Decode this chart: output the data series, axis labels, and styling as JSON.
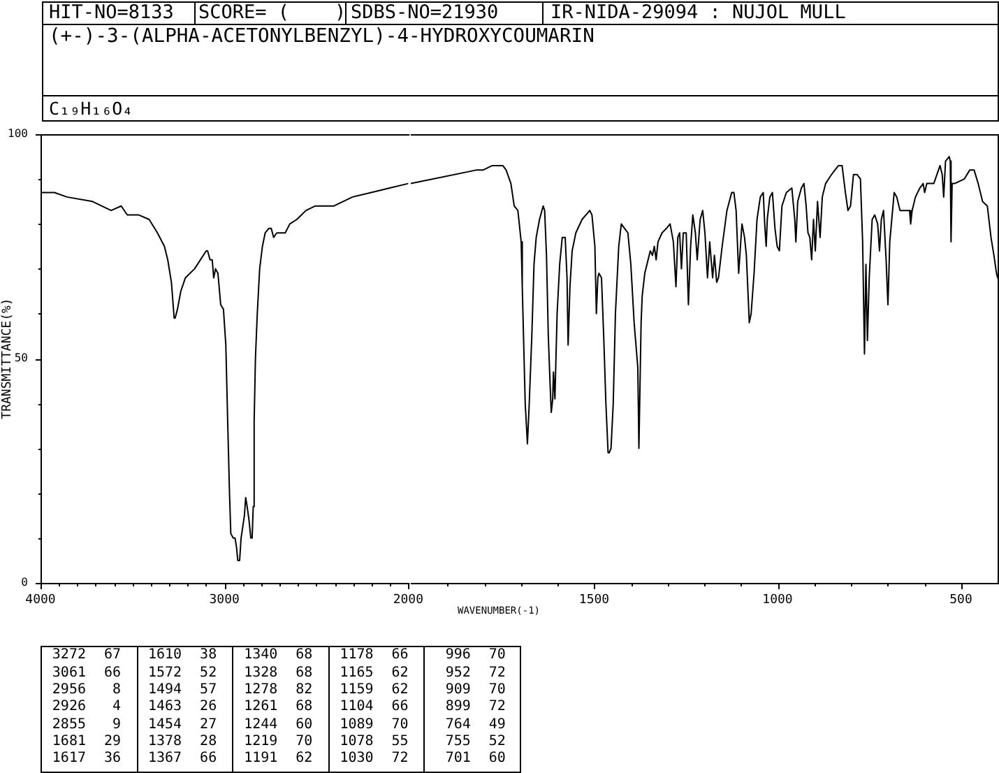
{
  "chart_data": [
    {
      "type": "line",
      "title": "(+-)-3-(ALPHA-ACETONYLBENZYL)-4-HYDROXYCOUMARIN",
      "subtitle": "C₁₉H₁₆O₄",
      "annotations": [
        "HIT-NO=8133",
        "SCORE= (    )",
        "SDBS-NO=21930",
        "IR-NIDA-29094 : NUJOL MULL"
      ],
      "ylabel": "TRANSMITTANCE(%)",
      "x": [
        4000,
        3924,
        3856,
        3717,
        3616,
        3561,
        3528,
        3465,
        3409,
        3364,
        3326,
        3308,
        3288,
        3273,
        3268,
        3255,
        3237,
        3212,
        3162,
        3099,
        3091,
        3078,
        3066,
        3058,
        3048,
        3035,
        3020,
        3005,
        2992,
        2982,
        2972,
        2965,
        2952,
        2942,
        2934,
        2927,
        2917,
        2909,
        2891,
        2884,
        2876,
        2866,
        2856,
        2849,
        2843,
        2838,
        2831,
        2821,
        2808,
        2793,
        2778,
        2758,
        2745,
        2732,
        2715,
        2669,
        2644,
        2606,
        2556,
        2505,
        2404,
        2303,
        2202,
        2101,
        2000
      ],
      "values": [
        87,
        87,
        86,
        85,
        83,
        84,
        82,
        82,
        81,
        78,
        75,
        72,
        67,
        59,
        59,
        61,
        65,
        68,
        70,
        74,
        74,
        72,
        72,
        68,
        70,
        69,
        62,
        61,
        53,
        36,
        20,
        11,
        10,
        10,
        8,
        5,
        5,
        10,
        15,
        19,
        17,
        14,
        10,
        10,
        17,
        36,
        50,
        60,
        70,
        75,
        78,
        79,
        79,
        77,
        78,
        78,
        80,
        81,
        83,
        84,
        84,
        86,
        87,
        88,
        89
      ],
      "color": "#000000",
      "xlim": [
        4000,
        2000
      ],
      "xticks": [
        4000,
        {
          "value": 3900,
          "label": null
        },
        {
          "value": 3800,
          "label": null
        },
        {
          "value": 3700,
          "label": null
        },
        {
          "value": 3600,
          "label": null
        },
        {
          "value": 3500,
          "label": null
        },
        {
          "value": 3400,
          "label": null
        },
        {
          "value": 3300,
          "label": null
        },
        {
          "value": 3200,
          "label": null
        },
        {
          "value": 3100,
          "label": null
        },
        3000,
        {
          "value": 2900,
          "label": null
        },
        {
          "value": 2800,
          "label": null
        },
        {
          "value": 2700,
          "label": null
        },
        {
          "value": 2600,
          "label": null
        },
        {
          "value": 2500,
          "label": null
        },
        {
          "value": 2400,
          "label": null
        },
        {
          "value": 2300,
          "label": null
        },
        {
          "value": 2200,
          "label": null
        },
        {
          "value": 2100,
          "label": null
        },
        2000
      ],
      "ylim": [
        0,
        100
      ],
      "yticks": [
        0,
        {
          "value": 10,
          "label": null
        },
        {
          "value": 20,
          "label": null
        },
        {
          "value": 30,
          "label": null
        },
        {
          "value": 40,
          "label": null
        },
        50,
        {
          "value": 60,
          "label": null
        },
        {
          "value": 70,
          "label": null
        },
        {
          "value": 80,
          "label": null
        },
        {
          "value": 90,
          "label": null
        },
        100
      ],
      "grid": false,
      "legend": false,
      "marker": "none",
      "line_style": "solid"
    },
    {
      "type": "line",
      "xlabel": "WAVENUMBER(-1)",
      "x": [
        2000,
        1822,
        1803,
        1778,
        1749,
        1740,
        1727,
        1718,
        1708,
        1699,
        1696,
        1688,
        1682,
        1677,
        1670,
        1664,
        1658,
        1649,
        1639,
        1635,
        1630,
        1625,
        1620,
        1617,
        1613,
        1611,
        1607,
        1601,
        1594,
        1587,
        1579,
        1574,
        1571,
        1566,
        1560,
        1550,
        1533,
        1512,
        1506,
        1498,
        1494,
        1490,
        1487,
        1480,
        1474,
        1468,
        1462,
        1459,
        1454,
        1448,
        1442,
        1433,
        1426,
        1417,
        1408,
        1400,
        1391,
        1381,
        1378,
        1372,
        1369,
        1362,
        1353,
        1347,
        1341,
        1336,
        1331,
        1326,
        1315,
        1303,
        1293,
        1284,
        1277,
        1272,
        1267,
        1262,
        1257,
        1249,
        1243,
        1237,
        1231,
        1224,
        1219,
        1211,
        1204,
        1198,
        1191,
        1185,
        1177,
        1172,
        1166,
        1161,
        1151,
        1138,
        1125,
        1119,
        1113,
        1106,
        1097,
        1090,
        1085,
        1077,
        1072,
        1064,
        1056,
        1047,
        1039,
        1035,
        1031,
        1028,
        1021,
        1014,
        1007,
        1001,
        995,
        988,
        976,
        961,
        953,
        950,
        945,
        935,
        928,
        922,
        917,
        912,
        907,
        902,
        897,
        891,
        884,
        878,
        869,
        853,
        834,
        824,
        815,
        808,
        801,
        793,
        783,
        774,
        768,
        763,
        759,
        755,
        750,
        742,
        735,
        727,
        722,
        717,
        711,
        704,
        699,
        694,
        682,
        675,
        666,
        650,
        640,
        637,
        633,
        624,
        612,
        603,
        599,
        593,
        574,
        557,
        551,
        547,
        542,
        532,
        529,
        527,
        524,
        517,
        491,
        476,
        464,
        453,
        441,
        428,
        418,
        410,
        403,
        400
      ],
      "values": [
        89,
        92,
        92,
        93,
        93,
        92,
        89,
        84,
        83,
        76,
        66,
        40,
        31,
        40,
        55,
        71,
        77,
        81,
        84,
        83,
        73,
        55,
        44,
        38,
        41,
        47,
        41,
        60,
        71,
        77,
        77,
        68,
        53,
        66,
        74,
        78,
        81,
        83,
        82,
        75,
        60,
        68,
        69,
        68,
        55,
        40,
        29,
        29,
        30,
        40,
        60,
        75,
        80,
        79,
        78,
        71,
        58,
        48,
        30,
        58,
        64,
        69,
        72,
        74,
        73,
        75,
        72,
        76,
        78,
        79,
        80,
        76,
        66,
        77,
        78,
        70,
        78,
        78,
        62,
        75,
        82,
        78,
        72,
        81,
        83,
        78,
        68,
        76,
        68,
        73,
        67,
        68,
        75,
        83,
        87,
        87,
        83,
        69,
        80,
        77,
        73,
        58,
        60,
        69,
        81,
        86,
        87,
        80,
        75,
        81,
        86,
        87,
        79,
        75,
        74,
        84,
        87,
        88,
        81,
        76,
        85,
        88,
        89,
        84,
        78,
        77,
        72,
        81,
        74,
        85,
        77,
        86,
        89,
        91,
        93,
        93,
        87,
        83,
        84,
        91,
        91,
        90,
        76,
        51,
        71,
        54,
        68,
        81,
        82,
        80,
        74,
        81,
        83,
        72,
        62,
        76,
        87,
        86,
        83,
        83,
        83,
        80,
        83,
        86,
        88,
        89,
        87,
        89,
        89,
        93,
        91,
        86,
        94,
        95,
        94,
        76,
        89,
        89,
        90,
        92,
        92,
        89,
        85,
        84,
        77,
        73,
        69,
        68
      ],
      "color": "#000000",
      "xlim": [
        2000,
        400
      ],
      "xticks": [
        {
          "value": 1900,
          "label": null
        },
        {
          "value": 1800,
          "label": null
        },
        {
          "value": 1700,
          "label": null
        },
        {
          "value": 1600,
          "label": null
        },
        1500,
        {
          "value": 1400,
          "label": null
        },
        {
          "value": 1300,
          "label": null
        },
        {
          "value": 1200,
          "label": null
        },
        {
          "value": 1100,
          "label": null
        },
        1000,
        {
          "value": 900,
          "label": null
        },
        {
          "value": 800,
          "label": null
        },
        {
          "value": 700,
          "label": null
        },
        {
          "value": 600,
          "label": null
        },
        500
      ],
      "ylim": [
        0,
        100
      ],
      "tick_labels": "x",
      "grid": false,
      "legend": false,
      "marker": "none",
      "line_style": "solid"
    },
    {
      "type": "other",
      "categories": [
        "3272",
        "3061",
        "2956",
        "2926",
        "2855",
        "1681",
        "1617",
        "1610",
        "1572",
        "1494",
        "1463",
        "1454",
        "1378",
        "1367",
        "1340",
        "1328",
        "1278",
        "1261",
        "1244",
        "1219",
        "1191",
        "1178",
        "1165",
        "1159",
        "1104",
        "1089",
        "1078",
        "1030",
        "996",
        "952",
        "909",
        "899",
        "764",
        "755",
        "701"
      ],
      "values": [
        67,
        66,
        8,
        4,
        9,
        29,
        36,
        38,
        52,
        57,
        26,
        27,
        28,
        66,
        68,
        68,
        82,
        68,
        60,
        70,
        62,
        66,
        62,
        62,
        66,
        70,
        55,
        72,
        70,
        72,
        70,
        72,
        49,
        52,
        60
      ],
      "data_labels": true
    }
  ]
}
